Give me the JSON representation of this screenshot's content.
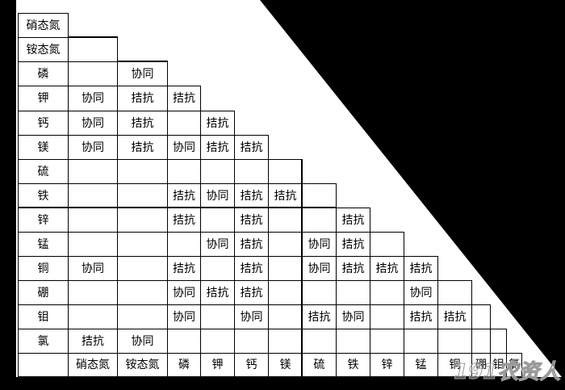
{
  "table": {
    "row_labels": [
      "硝态氮",
      "铵态氮",
      "磷",
      "钾",
      "钙",
      "镁",
      "硫",
      "铁",
      "锌",
      "锰",
      "铜",
      "硼",
      "钼",
      "氯"
    ],
    "column_labels": [
      "硝态氮",
      "铵态氮",
      "磷",
      "钾",
      "钙",
      "镁",
      "硫",
      "铁",
      "锌",
      "锰",
      "铜",
      "硼",
      "钼",
      "氯"
    ],
    "rows": [
      [],
      [
        ""
      ],
      [
        "",
        "协同"
      ],
      [
        "协同",
        "拮抗",
        "拮抗"
      ],
      [
        "协同",
        "拮抗",
        "",
        "拮抗"
      ],
      [
        "协同",
        "拮抗",
        "协同",
        "拮抗",
        "拮抗"
      ],
      [
        "",
        "",
        "",
        "",
        "",
        ""
      ],
      [
        "",
        "",
        "拮抗",
        "协同",
        "拮抗",
        "拮抗",
        ""
      ],
      [
        "",
        "",
        "拮抗",
        "",
        "拮抗",
        "",
        "",
        "拮抗"
      ],
      [
        "",
        "",
        "",
        "协同",
        "拮抗",
        "",
        "协同",
        "拮抗",
        ""
      ],
      [
        "协同",
        "",
        "拮抗",
        "",
        "拮抗",
        "",
        "协同",
        "拮抗",
        "拮抗",
        "拮抗"
      ],
      [
        "",
        "",
        "协同",
        "拮抗",
        "拮抗",
        "",
        "",
        "",
        "",
        "协同",
        ""
      ],
      [
        "",
        "",
        "协同",
        "",
        "协同",
        "",
        "拮抗",
        "协同",
        "",
        "拮抗",
        "拮抗",
        ""
      ],
      [
        "拮抗",
        "协同",
        "",
        "",
        "",
        "",
        "",
        "",
        "",
        "",
        "",
        "",
        ""
      ]
    ]
  },
  "watermark": "191农资人",
  "colors": {
    "page_background": "#ffffff",
    "frame": "#000000",
    "grid_lines": "#000000",
    "text": "#000000"
  }
}
